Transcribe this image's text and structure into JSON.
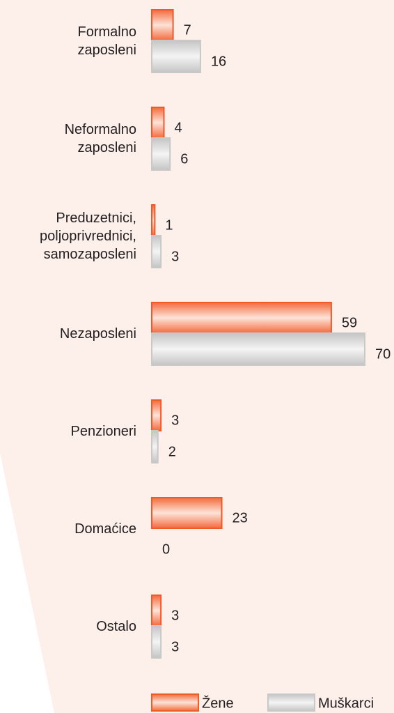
{
  "chart_data": {
    "type": "bar",
    "orientation": "horizontal",
    "categories": [
      "Formalno\nzaposleni",
      "Neformalno\nzaposleni",
      "Preduzetnici,\npoljoprivrednici,\nsamozaposleni",
      "Nezaposleni",
      "Penzioneri",
      "Domaćice",
      "Ostalo"
    ],
    "series": [
      {
        "name": "Žene",
        "color": "#ef5a2a",
        "values": [
          7,
          4,
          1,
          59,
          3,
          23,
          3
        ]
      },
      {
        "name": "Muškarci",
        "color": "#c8c8c8",
        "values": [
          16,
          6,
          3,
          70,
          2,
          0,
          3
        ]
      }
    ]
  }
}
